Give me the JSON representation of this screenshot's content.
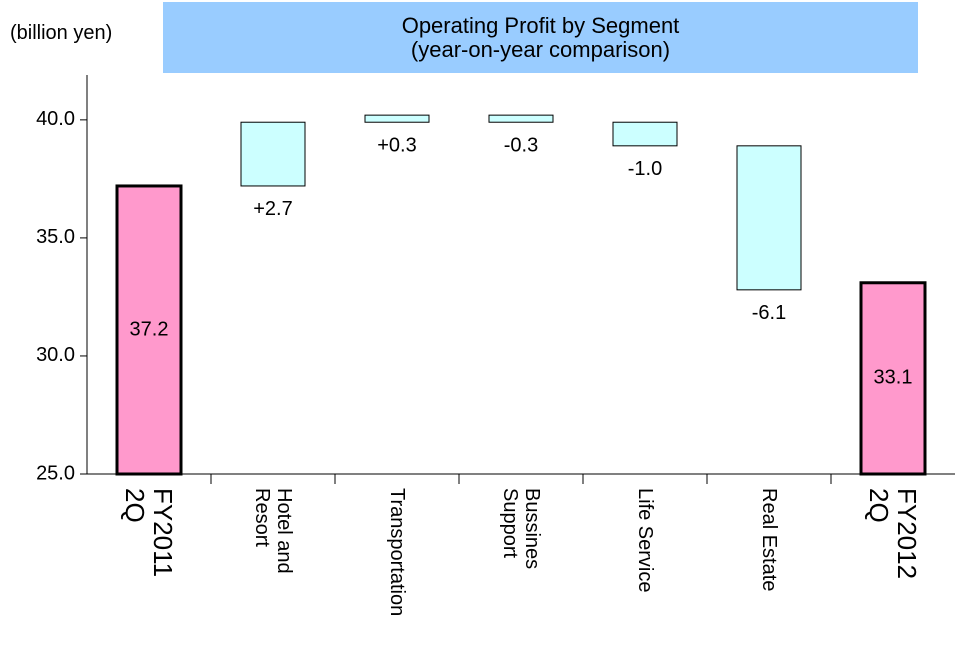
{
  "chart_data": {
    "type": "waterfall",
    "title": "Operating Profit by Segment\n(year-on-year comparison)",
    "y_axis_label": "(billion yen)",
    "categories": [
      "FY2011\n2Q",
      "Hotel and\nResort",
      "Transportation",
      "Bussines\nSupport",
      "Life Service",
      "Real Estate",
      "FY2012\n2Q"
    ],
    "values": [
      37.2,
      2.7,
      0.3,
      -0.3,
      -1.0,
      -6.1,
      33.1
    ],
    "value_labels": [
      "37.2",
      "+2.7",
      "+0.3",
      "-0.3",
      "-1.0",
      "-6.1",
      "33.1"
    ],
    "total_color": "#ff99cc",
    "change_color": "#ccffff",
    "title_color": "#99ccff",
    "ylim": [
      25,
      41.9
    ],
    "yticks": [
      {
        "value": 25,
        "label": "25.0"
      },
      {
        "value": 30,
        "label": "30.0"
      },
      {
        "value": 35,
        "label": "35.0"
      },
      {
        "value": 40,
        "label": "40.0"
      }
    ],
    "grid": false
  }
}
